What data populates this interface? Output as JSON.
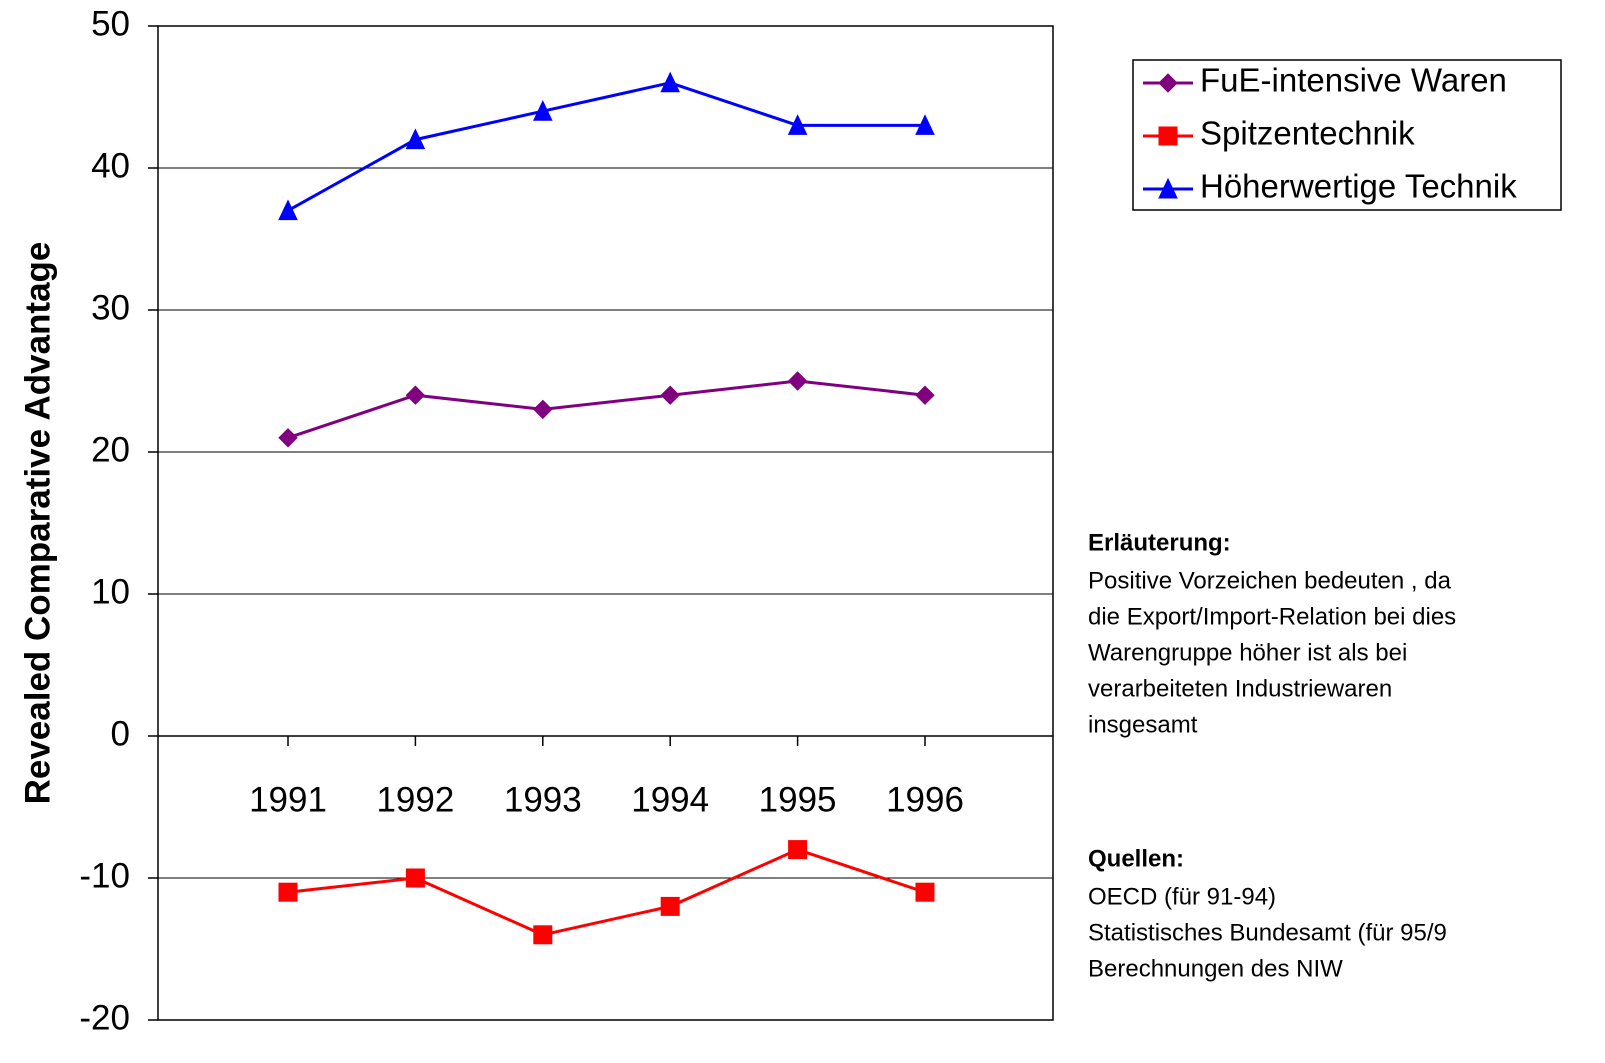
{
  "chart_data": {
    "type": "line",
    "y_label": "Revealed Comparative Advantage",
    "categories": [
      "1991",
      "1992",
      "1993",
      "1994",
      "1995",
      "1996"
    ],
    "series": [
      {
        "name": "FuE-intensive Waren",
        "color": "#800080",
        "marker": "diamond",
        "values": [
          21,
          24,
          23,
          24,
          25,
          24
        ]
      },
      {
        "name": "Spitzentechnik",
        "color": "#ff0000",
        "marker": "square",
        "values": [
          -11,
          -10,
          -14,
          -12,
          -8,
          -11
        ]
      },
      {
        "name": "Höherwertige Technik",
        "color": "#0000ff",
        "marker": "triangle",
        "values": [
          37,
          42,
          44,
          46,
          43,
          43
        ]
      }
    ],
    "ylim": [
      -20,
      50
    ],
    "yticks": [
      -20,
      -10,
      0,
      10,
      20,
      30,
      40,
      50
    ],
    "grid": true,
    "legend": "upper right"
  },
  "notes": {
    "heading": "Erläuterung:",
    "lines": [
      "Positive Vorzeichen bedeuten , da",
      "die Export/Import-Relation bei dies",
      "Warengruppe höher ist als bei",
      "verarbeiteten Industriewaren",
      "insgesamt"
    ]
  },
  "sources": {
    "heading": "Quellen:",
    "lines": [
      "OECD  (für 91-94)",
      "Statistisches Bundesamt (für 95/9",
      "Berechnungen des NIW"
    ]
  }
}
